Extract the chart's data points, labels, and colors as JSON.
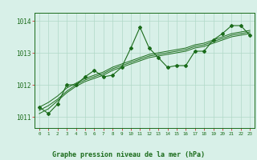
{
  "x": [
    0,
    1,
    2,
    3,
    4,
    5,
    6,
    7,
    8,
    9,
    10,
    11,
    12,
    13,
    14,
    15,
    16,
    17,
    18,
    19,
    20,
    21,
    22,
    23
  ],
  "y_main": [
    1011.3,
    1011.1,
    1011.4,
    1012.0,
    1012.0,
    1012.25,
    1012.45,
    1012.25,
    1012.3,
    1012.55,
    1013.15,
    1013.8,
    1013.15,
    1012.85,
    1012.55,
    1012.6,
    1012.6,
    1013.05,
    1013.05,
    1013.4,
    1013.6,
    1013.85,
    1013.85,
    1013.55
  ],
  "y_trend1": [
    1011.1,
    1011.25,
    1011.5,
    1011.75,
    1011.95,
    1012.1,
    1012.2,
    1012.3,
    1012.45,
    1012.55,
    1012.65,
    1012.75,
    1012.85,
    1012.9,
    1012.95,
    1013.0,
    1013.05,
    1013.15,
    1013.2,
    1013.3,
    1013.4,
    1013.5,
    1013.55,
    1013.6
  ],
  "y_trend2": [
    1011.2,
    1011.35,
    1011.55,
    1011.8,
    1012.0,
    1012.15,
    1012.25,
    1012.35,
    1012.5,
    1012.6,
    1012.7,
    1012.8,
    1012.9,
    1012.95,
    1013.0,
    1013.05,
    1013.1,
    1013.2,
    1013.25,
    1013.35,
    1013.45,
    1013.55,
    1013.6,
    1013.65
  ],
  "y_trend3": [
    1011.3,
    1011.45,
    1011.65,
    1011.9,
    1012.05,
    1012.2,
    1012.3,
    1012.4,
    1012.55,
    1012.65,
    1012.75,
    1012.85,
    1012.95,
    1013.0,
    1013.05,
    1013.1,
    1013.15,
    1013.25,
    1013.3,
    1013.4,
    1013.5,
    1013.6,
    1013.65,
    1013.7
  ],
  "line_color": "#1a6b1a",
  "bg_color": "#d8f0e8",
  "grid_color": "#b0d8c8",
  "tick_color": "#cc3333",
  "ylabel_values": [
    1011,
    1012,
    1013,
    1014
  ],
  "xlabel": "Graphe pression niveau de la mer (hPa)",
  "xlim": [
    -0.5,
    23.5
  ],
  "ylim": [
    1010.65,
    1014.25
  ]
}
